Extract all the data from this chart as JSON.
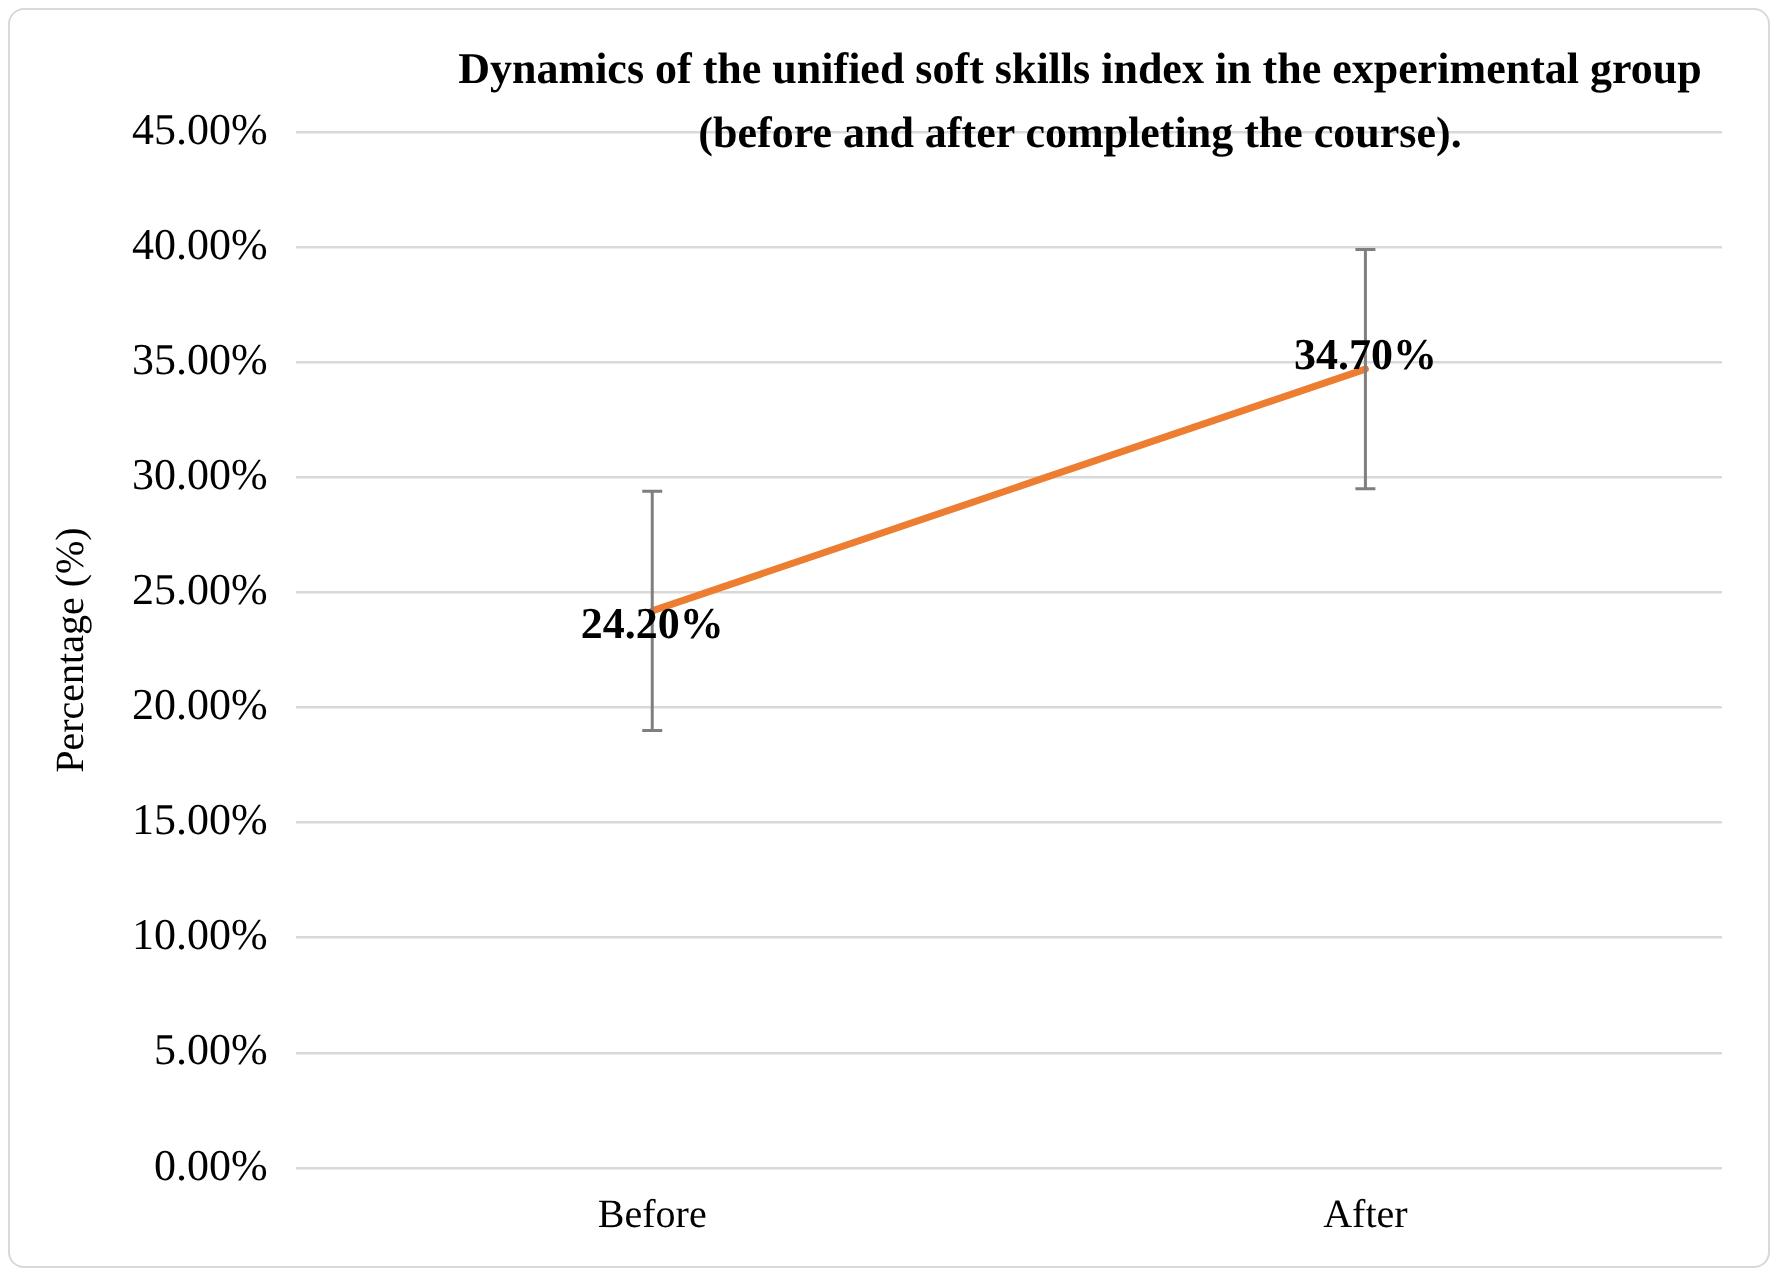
{
  "chart_data": {
    "type": "line",
    "title": "Dynamics of the unified soft skills index in the experimental group (before and after completing the course).",
    "ylabel": "Percentage (%)",
    "categories": [
      "Before",
      "After"
    ],
    "series": [
      {
        "color": "#ed7d31",
        "values": [
          24.2,
          34.7
        ],
        "errors": [
          5.2,
          5.2
        ],
        "value_labels": [
          "24.20%",
          "34.70%"
        ]
      }
    ],
    "ylim": [
      0,
      45
    ],
    "yticks": [
      {
        "value": 0,
        "label": "0.00%"
      },
      {
        "value": 5,
        "label": "5.00%"
      },
      {
        "value": 10,
        "label": "10.00%"
      },
      {
        "value": 15,
        "label": "15.00%"
      },
      {
        "value": 20,
        "label": "20.00%"
      },
      {
        "value": 25,
        "label": "25.00%"
      },
      {
        "value": 30,
        "label": "30.00%"
      },
      {
        "value": 35,
        "label": "35.00%"
      },
      {
        "value": 40,
        "label": "40.00%"
      },
      {
        "value": 45,
        "label": "45.00%"
      }
    ],
    "grid": "y",
    "legend": false,
    "marker": "none",
    "line_style": "solid"
  }
}
